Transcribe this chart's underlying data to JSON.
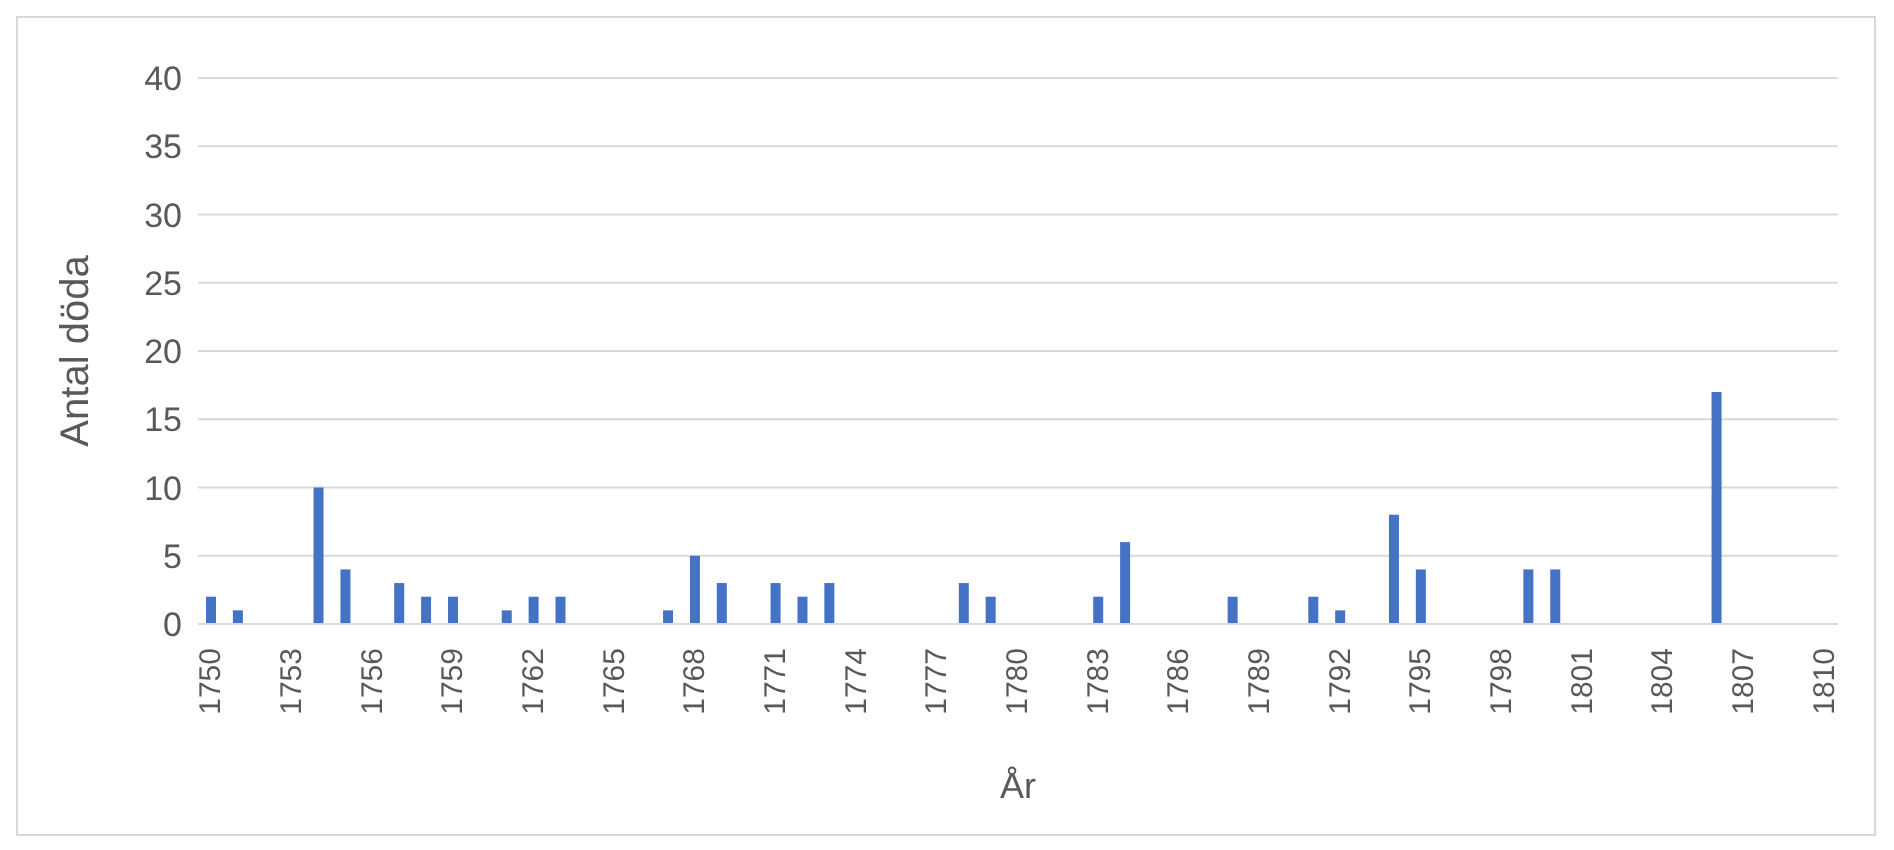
{
  "chart_data": {
    "type": "bar",
    "xlabel": "År",
    "ylabel": "Antal döda",
    "categories": [
      "1750",
      null,
      null,
      "1753",
      null,
      null,
      "1756",
      null,
      null,
      "1759",
      null,
      null,
      "1762",
      null,
      null,
      "1765",
      null,
      null,
      "1768",
      null,
      null,
      "1771",
      null,
      null,
      "1774",
      null,
      null,
      "1777",
      null,
      null,
      "1780",
      null,
      null,
      "1783",
      null,
      null,
      "1786",
      null,
      null,
      "1789",
      null,
      null,
      "1792",
      null,
      null,
      "1795",
      null,
      null,
      "1798",
      null,
      null,
      "1801",
      null,
      null,
      "1804",
      null,
      null,
      "1807",
      null,
      null,
      "1810"
    ],
    "values": [
      2,
      1,
      null,
      null,
      10,
      4,
      null,
      3,
      2,
      2,
      null,
      1,
      2,
      2,
      null,
      null,
      null,
      1,
      5,
      3,
      null,
      3,
      2,
      3,
      null,
      null,
      null,
      null,
      3,
      2,
      null,
      null,
      null,
      2,
      6,
      null,
      null,
      null,
      2,
      null,
      null,
      2,
      1,
      null,
      8,
      4,
      null,
      null,
      null,
      4,
      4,
      null,
      null,
      null,
      null,
      null,
      17,
      null,
      null,
      null,
      null
    ],
    "color": "#4472c4",
    "ylim": [
      0,
      40
    ],
    "yticks": [
      0,
      5,
      10,
      15,
      20,
      25,
      30,
      35,
      40
    ],
    "grid": "y"
  }
}
